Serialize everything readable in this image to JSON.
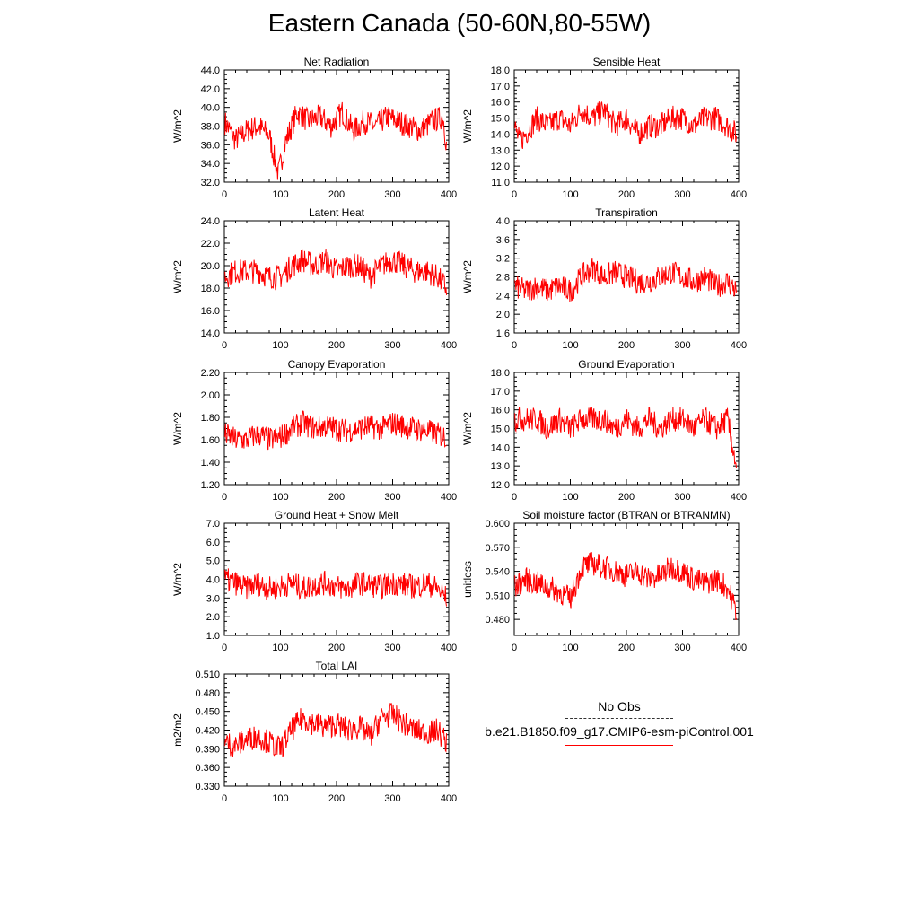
{
  "title": "Eastern Canada (50-60N,80-55W)",
  "legend": {
    "obs_label": "No Obs",
    "run_label": "b.e21.B1850.f09_g17.CMIP6-esm-piControl.001",
    "run_color": "#ff0000"
  },
  "chart_data": [
    {
      "type": "line",
      "title": "Net Radiation",
      "ylabel": "W/m^2",
      "xlim": [
        0,
        400
      ],
      "ylim": [
        32.0,
        44.0
      ],
      "xticks": [
        0,
        100,
        200,
        300,
        400
      ],
      "yticks": [
        32.0,
        34.0,
        36.0,
        38.0,
        40.0,
        42.0,
        44.0
      ],
      "ytick_labels": [
        "32.0",
        "34.0",
        "36.0",
        "38.0",
        "40.0",
        "42.0",
        "44.0"
      ],
      "series": [
        {
          "color": "#ff0000",
          "x": [
            0,
            20,
            40,
            60,
            80,
            96,
            110,
            130,
            150,
            170,
            190,
            210,
            230,
            250,
            270,
            290,
            310,
            330,
            350,
            370,
            390,
            396
          ],
          "y": [
            38.5,
            36.5,
            37.5,
            38.0,
            37.0,
            32.8,
            36.5,
            39.5,
            38.5,
            39.0,
            38.0,
            39.5,
            37.5,
            38.5,
            38.0,
            39.0,
            38.5,
            38.0,
            37.5,
            38.5,
            39.0,
            36.0
          ]
        }
      ]
    },
    {
      "type": "line",
      "title": "Sensible Heat",
      "ylabel": "W/m^2",
      "xlim": [
        0,
        400
      ],
      "ylim": [
        11.0,
        18.0
      ],
      "xticks": [
        0,
        100,
        200,
        300,
        400
      ],
      "yticks": [
        11.0,
        12.0,
        13.0,
        14.0,
        15.0,
        16.0,
        17.0,
        18.0
      ],
      "ytick_labels": [
        "11.0",
        "12.0",
        "13.0",
        "14.0",
        "15.0",
        "16.0",
        "17.0",
        "18.0"
      ],
      "series": [
        {
          "color": "#ff0000",
          "x": [
            0,
            10,
            20,
            40,
            60,
            80,
            100,
            120,
            140,
            160,
            180,
            200,
            220,
            240,
            260,
            280,
            300,
            320,
            340,
            360,
            380,
            396
          ],
          "y": [
            14.5,
            13.5,
            14.0,
            15.0,
            14.5,
            15.0,
            14.5,
            15.5,
            15.0,
            15.5,
            14.5,
            15.0,
            14.0,
            14.5,
            14.5,
            15.0,
            15.0,
            14.5,
            15.0,
            15.0,
            14.5,
            14.0
          ]
        }
      ]
    },
    {
      "type": "line",
      "title": "Latent Heat",
      "ylabel": "W/m^2",
      "xlim": [
        0,
        400
      ],
      "ylim": [
        14.0,
        24.0
      ],
      "xticks": [
        0,
        100,
        200,
        300,
        400
      ],
      "yticks": [
        14.0,
        16.0,
        18.0,
        20.0,
        22.0,
        24.0
      ],
      "ytick_labels": [
        "14.0",
        "16.0",
        "18.0",
        "20.0",
        "22.0",
        "24.0"
      ],
      "series": [
        {
          "color": "#ff0000",
          "x": [
            0,
            20,
            40,
            60,
            80,
            100,
            120,
            140,
            160,
            180,
            200,
            220,
            240,
            260,
            280,
            300,
            320,
            340,
            360,
            380,
            396
          ],
          "y": [
            19.0,
            19.5,
            19.5,
            19.5,
            19.0,
            19.0,
            20.0,
            20.5,
            20.0,
            20.5,
            19.5,
            20.0,
            20.0,
            19.0,
            20.0,
            20.5,
            20.0,
            19.5,
            19.5,
            19.0,
            18.0
          ]
        }
      ]
    },
    {
      "type": "line",
      "title": "Transpiration",
      "ylabel": "W/m^2",
      "xlim": [
        0,
        400
      ],
      "ylim": [
        1.6,
        4.0
      ],
      "xticks": [
        0,
        100,
        200,
        300,
        400
      ],
      "yticks": [
        1.6,
        2.0,
        2.4,
        2.8,
        3.2,
        3.6,
        4.0
      ],
      "ytick_labels": [
        "1.6",
        "2.0",
        "2.4",
        "2.8",
        "3.2",
        "3.6",
        "4.0"
      ],
      "series": [
        {
          "color": "#ff0000",
          "x": [
            0,
            20,
            40,
            60,
            80,
            100,
            120,
            140,
            160,
            180,
            200,
            220,
            240,
            260,
            280,
            300,
            320,
            340,
            360,
            380,
            396
          ],
          "y": [
            2.6,
            2.5,
            2.6,
            2.5,
            2.6,
            2.5,
            2.8,
            3.0,
            2.8,
            2.9,
            2.8,
            2.7,
            2.7,
            2.8,
            2.9,
            2.8,
            2.7,
            2.8,
            2.6,
            2.7,
            2.5
          ]
        }
      ]
    },
    {
      "type": "line",
      "title": "Canopy Evaporation",
      "ylabel": "W/m^2",
      "xlim": [
        0,
        400
      ],
      "ylim": [
        1.2,
        2.2
      ],
      "xticks": [
        0,
        100,
        200,
        300,
        400
      ],
      "yticks": [
        1.2,
        1.4,
        1.6,
        1.8,
        2.0,
        2.2
      ],
      "ytick_labels": [
        "1.20",
        "1.40",
        "1.60",
        "1.80",
        "2.00",
        "2.20"
      ],
      "series": [
        {
          "color": "#ff0000",
          "x": [
            0,
            20,
            40,
            60,
            80,
            100,
            120,
            140,
            160,
            180,
            200,
            220,
            240,
            260,
            280,
            300,
            320,
            340,
            360,
            380,
            396
          ],
          "y": [
            1.65,
            1.6,
            1.6,
            1.65,
            1.6,
            1.62,
            1.7,
            1.75,
            1.7,
            1.72,
            1.7,
            1.68,
            1.7,
            1.72,
            1.7,
            1.75,
            1.72,
            1.7,
            1.68,
            1.65,
            1.62
          ]
        }
      ]
    },
    {
      "type": "line",
      "title": "Ground Evaporation",
      "ylabel": "W/m^2",
      "xlim": [
        0,
        400
      ],
      "ylim": [
        12.0,
        18.0
      ],
      "xticks": [
        0,
        100,
        200,
        300,
        400
      ],
      "yticks": [
        12.0,
        13.0,
        14.0,
        15.0,
        16.0,
        17.0,
        18.0
      ],
      "ytick_labels": [
        "12.0",
        "13.0",
        "14.0",
        "15.0",
        "16.0",
        "17.0",
        "18.0"
      ],
      "series": [
        {
          "color": "#ff0000",
          "x": [
            0,
            20,
            40,
            60,
            80,
            100,
            120,
            140,
            160,
            180,
            200,
            220,
            240,
            260,
            280,
            300,
            320,
            340,
            360,
            380,
            396
          ],
          "y": [
            15.5,
            15.5,
            15.5,
            15.0,
            15.5,
            15.0,
            15.5,
            15.5,
            15.5,
            15.0,
            15.5,
            15.0,
            15.5,
            15.0,
            15.5,
            15.5,
            15.0,
            15.5,
            15.0,
            15.5,
            13.0
          ]
        }
      ]
    },
    {
      "type": "line",
      "title": "Ground Heat + Snow Melt",
      "ylabel": "W/m^2",
      "xlim": [
        0,
        400
      ],
      "ylim": [
        1.0,
        7.0
      ],
      "xticks": [
        0,
        100,
        200,
        300,
        400
      ],
      "yticks": [
        1.0,
        2.0,
        3.0,
        4.0,
        5.0,
        6.0,
        7.0
      ],
      "ytick_labels": [
        "1.0",
        "2.0",
        "3.0",
        "4.0",
        "5.0",
        "6.0",
        "7.0"
      ],
      "series": [
        {
          "color": "#ff0000",
          "x": [
            0,
            20,
            40,
            60,
            80,
            100,
            120,
            140,
            160,
            180,
            200,
            220,
            240,
            260,
            280,
            300,
            320,
            340,
            360,
            380,
            396
          ],
          "y": [
            4.0,
            3.8,
            3.5,
            3.8,
            3.5,
            3.6,
            3.8,
            3.5,
            3.7,
            3.8,
            3.6,
            3.5,
            3.8,
            3.7,
            3.6,
            3.8,
            3.7,
            3.6,
            3.8,
            3.5,
            3.0
          ]
        }
      ]
    },
    {
      "type": "line",
      "title": "Soil moisture factor (BTRAN or BTRANMN)",
      "ylabel": "unitless",
      "xlim": [
        0,
        400
      ],
      "ylim": [
        0.46,
        0.6
      ],
      "xticks": [
        0,
        100,
        200,
        300,
        400
      ],
      "yticks": [
        0.48,
        0.51,
        0.54,
        0.57,
        0.6
      ],
      "ytick_labels": [
        "0.480",
        "0.510",
        "0.540",
        "0.570",
        "0.600"
      ],
      "series": [
        {
          "color": "#ff0000",
          "x": [
            0,
            20,
            40,
            60,
            80,
            100,
            120,
            140,
            160,
            180,
            200,
            220,
            240,
            260,
            280,
            300,
            320,
            340,
            360,
            380,
            396
          ],
          "y": [
            0.52,
            0.53,
            0.525,
            0.52,
            0.515,
            0.505,
            0.545,
            0.55,
            0.545,
            0.54,
            0.535,
            0.54,
            0.53,
            0.535,
            0.545,
            0.54,
            0.53,
            0.525,
            0.53,
            0.52,
            0.49
          ]
        }
      ]
    },
    {
      "type": "line",
      "title": "Total LAI",
      "ylabel": "m2/m2",
      "xlim": [
        0,
        400
      ],
      "ylim": [
        0.33,
        0.51
      ],
      "xticks": [
        0,
        100,
        200,
        300,
        400
      ],
      "yticks": [
        0.33,
        0.36,
        0.39,
        0.42,
        0.45,
        0.48,
        0.51
      ],
      "ytick_labels": [
        "0.330",
        "0.360",
        "0.390",
        "0.420",
        "0.450",
        "0.480",
        "0.510"
      ],
      "series": [
        {
          "color": "#ff0000",
          "x": [
            0,
            20,
            40,
            60,
            80,
            100,
            120,
            140,
            160,
            180,
            200,
            220,
            240,
            260,
            280,
            300,
            320,
            340,
            360,
            380,
            396
          ],
          "y": [
            0.4,
            0.395,
            0.405,
            0.41,
            0.4,
            0.39,
            0.42,
            0.44,
            0.43,
            0.425,
            0.43,
            0.42,
            0.425,
            0.41,
            0.44,
            0.445,
            0.43,
            0.42,
            0.415,
            0.42,
            0.4
          ]
        }
      ]
    }
  ]
}
